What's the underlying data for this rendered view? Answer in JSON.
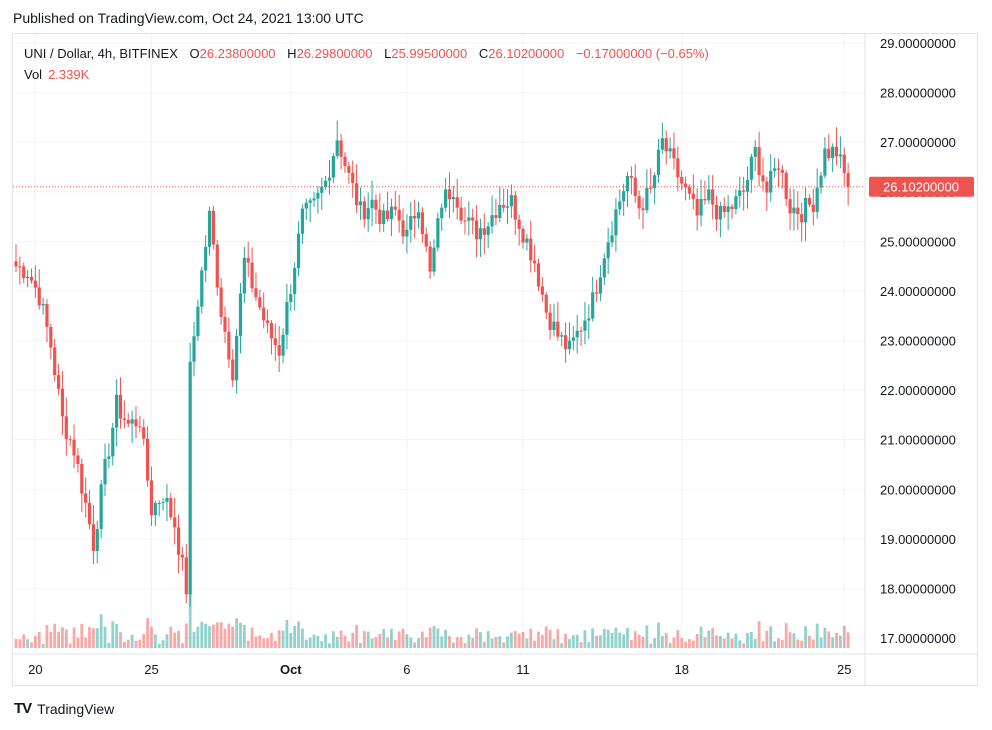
{
  "header": {
    "published": "Published on TradingView.com, Oct 24, 2021 13:00 UTC"
  },
  "legend": {
    "symbol": "UNI / Dollar, 4h, BITFINEX",
    "open_label": "O",
    "open": "26.23800000",
    "high_label": "H",
    "high": "26.29800000",
    "low_label": "L",
    "low": "25.99500000",
    "close_label": "C",
    "close": "26.10200000",
    "change": "−0.17000000 (−0.65%)",
    "vol_label": "Vol",
    "vol": "2.339K"
  },
  "price_tag": "26.10200000",
  "footer": {
    "brand": "TradingView",
    "logo_text": "TV"
  },
  "colors": {
    "up": "#26a69a",
    "down": "#ef5350",
    "grid": "#f0f3fa",
    "text": "#131722"
  },
  "chart_data": {
    "type": "candlestick",
    "ylim": [
      16.8,
      29.0
    ],
    "y_ticks": [
      {
        "value": 29,
        "label": "29.00000000"
      },
      {
        "value": 28,
        "label": "28.00000000"
      },
      {
        "value": 27,
        "label": "27.00000000"
      },
      {
        "value": 26,
        "label": "26.00000000"
      },
      {
        "value": 25,
        "label": "25.00000000"
      },
      {
        "value": 24,
        "label": "24.00000000"
      },
      {
        "value": 23,
        "label": "23.00000000"
      },
      {
        "value": 22,
        "label": "22.00000000"
      },
      {
        "value": 21,
        "label": "21.00000000"
      },
      {
        "value": 20,
        "label": "20.00000000"
      },
      {
        "value": 19,
        "label": "19.00000000"
      },
      {
        "value": 18,
        "label": "18.00000000"
      },
      {
        "value": 17,
        "label": "17.00000000"
      }
    ],
    "x_ticks": [
      {
        "label": "20",
        "index": 5,
        "bold": false
      },
      {
        "label": "25",
        "index": 35,
        "bold": false
      },
      {
        "label": "Oct",
        "index": 71,
        "bold": true
      },
      {
        "label": "6",
        "index": 101,
        "bold": false
      },
      {
        "label": "11",
        "index": 131,
        "bold": false
      },
      {
        "label": "18",
        "index": 172,
        "bold": false
      },
      {
        "label": "25",
        "index": 214,
        "bold": false
      }
    ],
    "last_price": 26.102,
    "anchors": [
      [
        0,
        24.5
      ],
      [
        3,
        24.4
      ],
      [
        6,
        23.9
      ],
      [
        9,
        22.9
      ],
      [
        12,
        21.4
      ],
      [
        15,
        20.8
      ],
      [
        18,
        19.7
      ],
      [
        20,
        18.9
      ],
      [
        23,
        20.4
      ],
      [
        26,
        21.7
      ],
      [
        29,
        21.3
      ],
      [
        32,
        21.4
      ],
      [
        35,
        19.6
      ],
      [
        38,
        19.9
      ],
      [
        41,
        19.3
      ],
      [
        44,
        18.0
      ],
      [
        45,
        22.4
      ],
      [
        47,
        23.8
      ],
      [
        50,
        25.5
      ],
      [
        53,
        23.6
      ],
      [
        56,
        22.4
      ],
      [
        59,
        24.6
      ],
      [
        62,
        23.9
      ],
      [
        65,
        23.2
      ],
      [
        68,
        22.8
      ],
      [
        71,
        24.1
      ],
      [
        74,
        25.5
      ],
      [
        77,
        25.7
      ],
      [
        80,
        26.2
      ],
      [
        83,
        27.1
      ],
      [
        86,
        26.3
      ],
      [
        89,
        25.6
      ],
      [
        92,
        25.8
      ],
      [
        95,
        25.4
      ],
      [
        98,
        25.6
      ],
      [
        101,
        25.1
      ],
      [
        104,
        25.8
      ],
      [
        107,
        24.3
      ],
      [
        110,
        25.8
      ],
      [
        113,
        26.1
      ],
      [
        116,
        25.4
      ],
      [
        119,
        25.2
      ],
      [
        122,
        25.4
      ],
      [
        125,
        25.8
      ],
      [
        128,
        25.8
      ],
      [
        131,
        25.2
      ],
      [
        134,
        24.6
      ],
      [
        137,
        23.6
      ],
      [
        140,
        23.1
      ],
      [
        143,
        22.8
      ],
      [
        146,
        23.3
      ],
      [
        149,
        23.8
      ],
      [
        152,
        24.8
      ],
      [
        155,
        25.6
      ],
      [
        158,
        26.3
      ],
      [
        161,
        25.7
      ],
      [
        164,
        26.0
      ],
      [
        167,
        27.0
      ],
      [
        170,
        26.5
      ],
      [
        173,
        26.0
      ],
      [
        176,
        25.5
      ],
      [
        179,
        25.9
      ],
      [
        182,
        25.5
      ],
      [
        185,
        25.7
      ],
      [
        188,
        26.0
      ],
      [
        191,
        26.8
      ],
      [
        194,
        26.0
      ],
      [
        197,
        26.6
      ],
      [
        200,
        25.7
      ],
      [
        203,
        25.6
      ],
      [
        206,
        25.8
      ],
      [
        209,
        26.8
      ],
      [
        212,
        26.8
      ],
      [
        215,
        26.1
      ]
    ],
    "volume_hint": "volume bars at bottom, up/down colored; largest spikes near 20, 25-26 and 11-16"
  }
}
